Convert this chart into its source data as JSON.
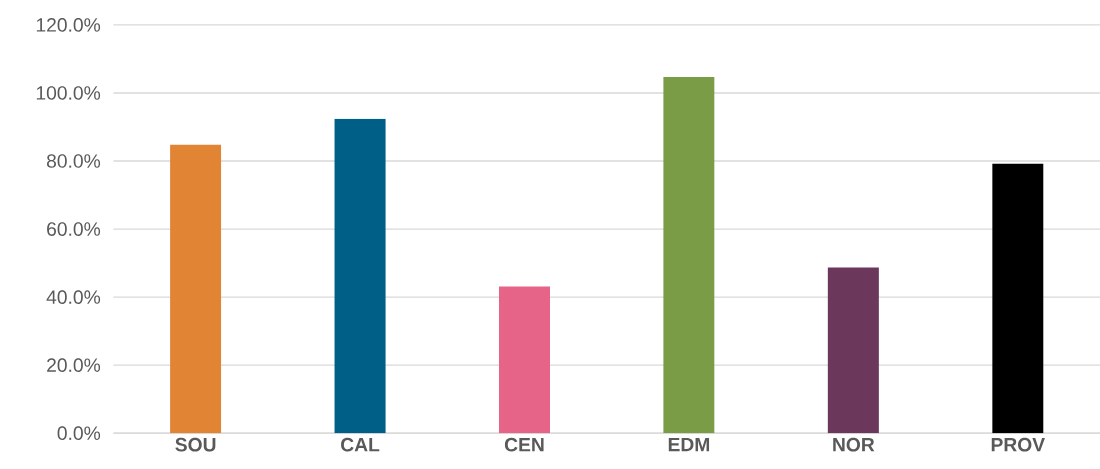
{
  "chart_data": {
    "type": "bar",
    "categories": [
      "SOU",
      "CAL",
      "CEN",
      "EDM",
      "NOR",
      "PROV"
    ],
    "values": [
      84.8,
      92.4,
      43.1,
      104.7,
      48.7,
      79.2
    ],
    "colors": [
      "#e18434",
      "#005f86",
      "#e66487",
      "#7a9c47",
      "#6b385c",
      "#000000"
    ],
    "ylim": [
      0,
      120
    ],
    "yticks": [
      {
        "value": 0,
        "label": "0.0%"
      },
      {
        "value": 20,
        "label": "20.0%"
      },
      {
        "value": 40,
        "label": "40.0%"
      },
      {
        "value": 60,
        "label": "60.0%"
      },
      {
        "value": 80,
        "label": "80.0%"
      },
      {
        "value": 100,
        "label": "100.0%"
      },
      {
        "value": 120,
        "label": "120.0%"
      }
    ],
    "grid": "y"
  }
}
